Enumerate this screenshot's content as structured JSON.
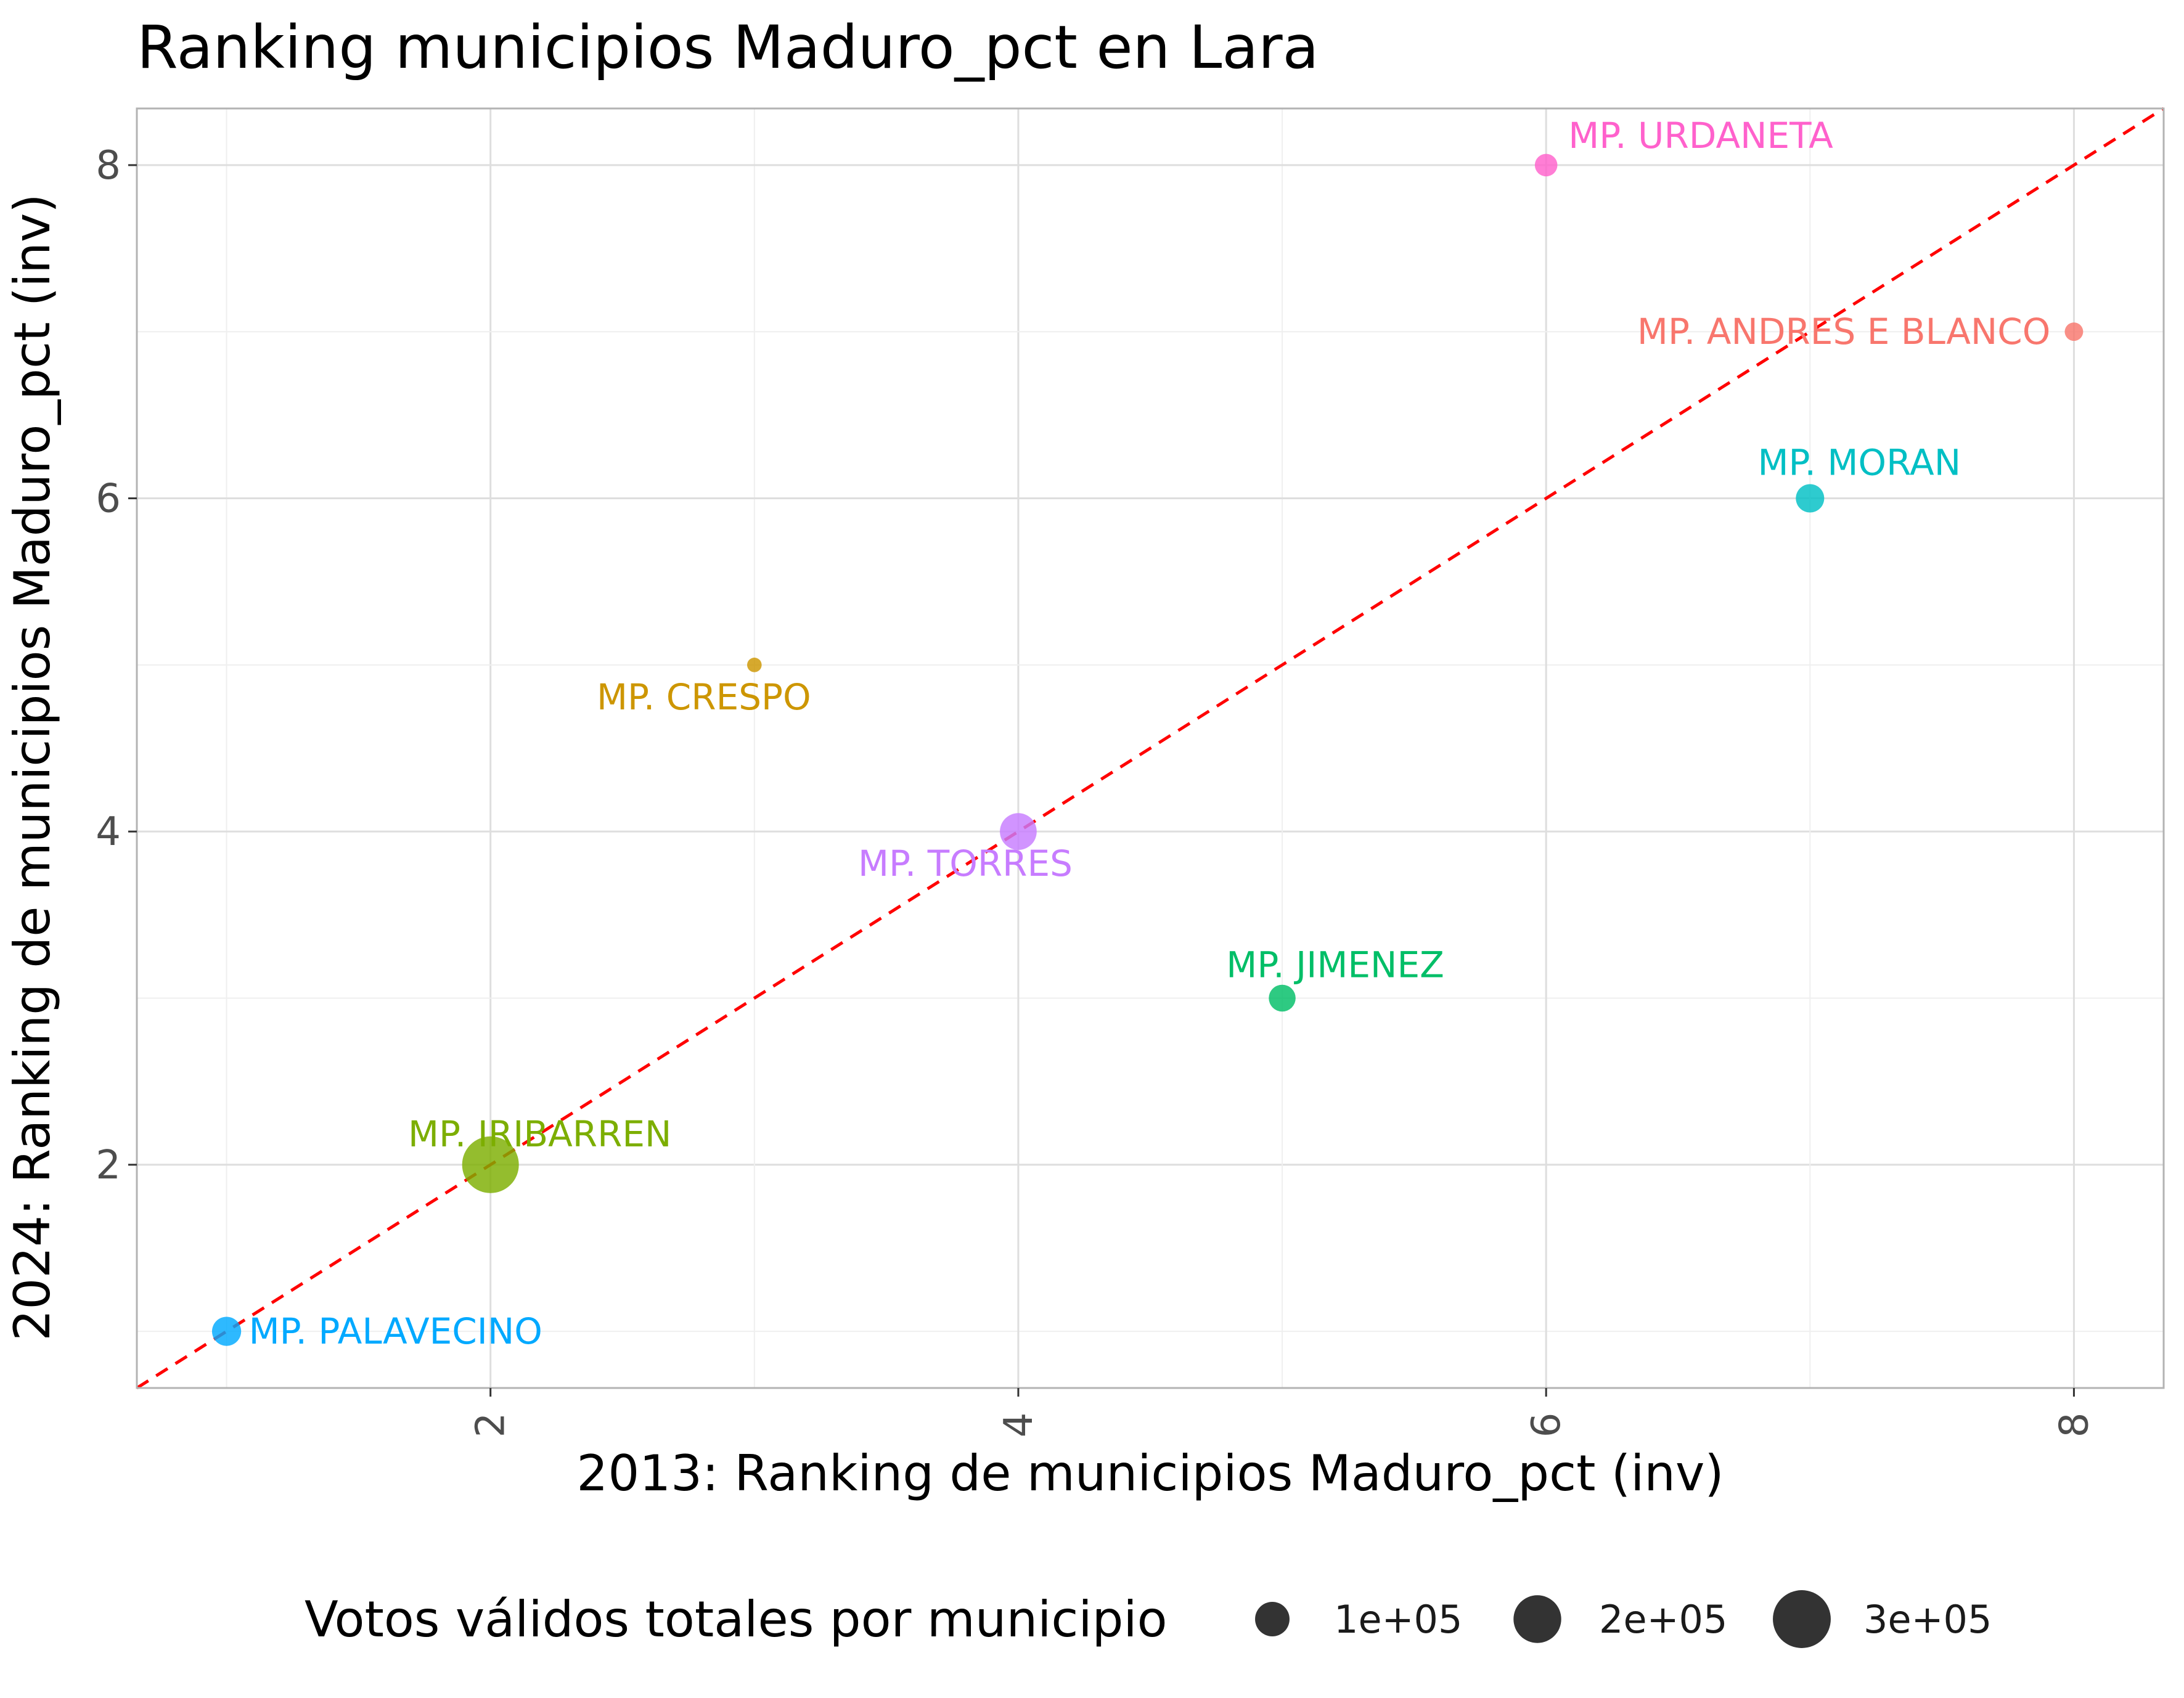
{
  "chart_data": {
    "type": "scatter",
    "title": "Ranking municipios Maduro_pct en Lara",
    "xlabel": "2013: Ranking de municipios Maduro_pct (inv)",
    "ylabel": "2024: Ranking de municipios Maduro_pct (inv)",
    "xlim": [
      0.66,
      8.34
    ],
    "ylim": [
      0.66,
      8.34
    ],
    "xticks": [
      "2",
      "4",
      "6",
      "8"
    ],
    "yticks": [
      "2",
      "4",
      "6",
      "8"
    ],
    "grid": true,
    "reference_line": {
      "type": "identity",
      "color": "#ff0000",
      "style": "dashed"
    },
    "points": [
      {
        "label": "MP. PALAVECINO",
        "x": 1,
        "y": 1,
        "votes": 100000,
        "color": "#00a9ff"
      },
      {
        "label": "MP. IRIBARREN",
        "x": 2,
        "y": 2,
        "votes": 380000,
        "color": "#7cae00"
      },
      {
        "label": "MP. CRESPO",
        "x": 3,
        "y": 5,
        "votes": 25000,
        "color": "#cd9600"
      },
      {
        "label": "MP. TORRES",
        "x": 4,
        "y": 4,
        "votes": 160000,
        "color": "#c77cff"
      },
      {
        "label": "MP. JIMENEZ",
        "x": 5,
        "y": 3,
        "votes": 85000,
        "color": "#00be67"
      },
      {
        "label": "MP. URDANETA",
        "x": 6,
        "y": 8,
        "votes": 60000,
        "color": "#ff61cc"
      },
      {
        "label": "MP. MORAN",
        "x": 7,
        "y": 6,
        "votes": 95000,
        "color": "#00bfc4"
      },
      {
        "label": "MP. ANDRES E BLANCO",
        "x": 8,
        "y": 7,
        "votes": 40000,
        "color": "#f8766d"
      }
    ],
    "legend": {
      "title": "Votos válidos totales por municipio",
      "placement": "bottom",
      "entries": [
        {
          "label": "1e+05",
          "votes": 100000
        },
        {
          "label": "2e+05",
          "votes": 200000
        },
        {
          "label": "3e+05",
          "votes": 300000
        }
      ]
    }
  }
}
